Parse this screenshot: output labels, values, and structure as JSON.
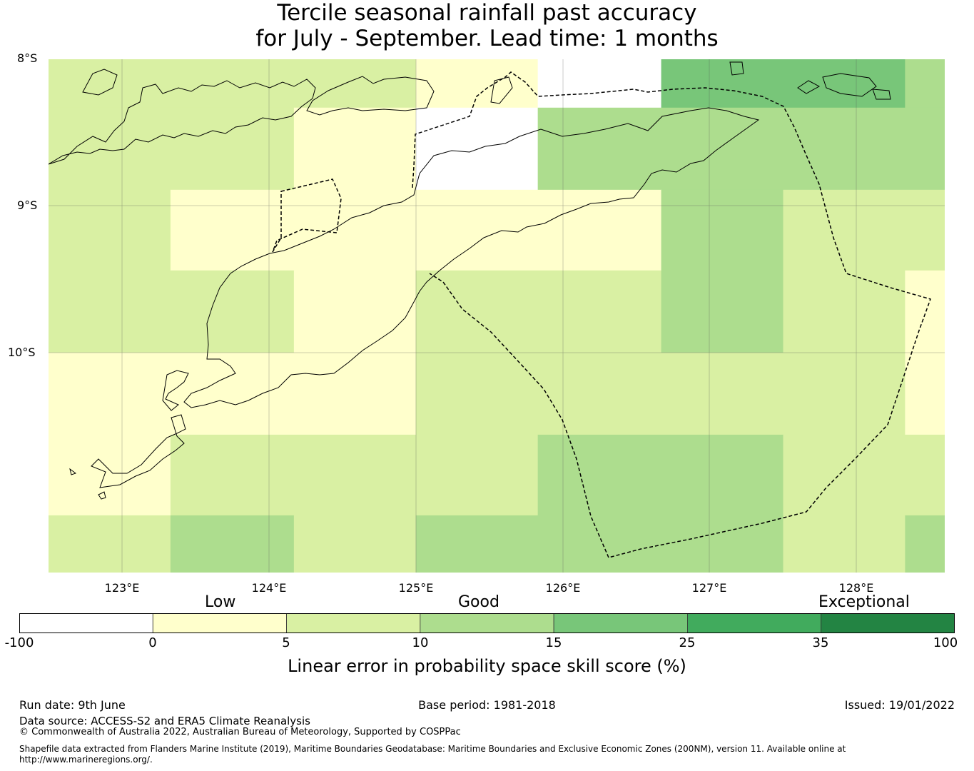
{
  "title": {
    "line1": "Tercile seasonal rainfall past accuracy",
    "line2": "for July - September. Lead time: 1 months"
  },
  "map": {
    "lon_range": [
      122.5,
      128.6
    ],
    "lat_range": [
      -11.5,
      -8.0
    ],
    "lat_labels": [
      "8°S",
      "9°S",
      "10°S"
    ],
    "lon_labels": [
      "123°E",
      "124°E",
      "125°E",
      "126°E",
      "127°E",
      "128°E"
    ],
    "colors": {
      "white": "#ffffff",
      "c0_5": "#ffffcc",
      "c5_10": "#d9f0a3",
      "c10_15": "#addd8e",
      "c15_25": "#78c679",
      "c25_35": "#41ab5d",
      "c35_100": "#238443"
    },
    "skill_grid_comment": "grid cells listed below as [lon_min, lon_max, lat_max, lat_min, class]",
    "skill_cells": [
      [
        122.5,
        125.0,
        -8.0,
        -8.33,
        "c5_10"
      ],
      [
        125.0,
        125.83,
        -8.0,
        -8.33,
        "c0_5"
      ],
      [
        125.83,
        126.67,
        -8.0,
        -8.33,
        "white"
      ],
      [
        126.67,
        128.33,
        -8.0,
        -8.33,
        "c15_25"
      ],
      [
        128.33,
        128.6,
        -8.0,
        -8.33,
        "c10_15"
      ],
      [
        122.5,
        124.17,
        -8.33,
        -8.89,
        "c5_10"
      ],
      [
        124.17,
        125.0,
        -8.33,
        -8.89,
        "c0_5"
      ],
      [
        125.0,
        125.83,
        -8.33,
        -8.89,
        "white"
      ],
      [
        125.83,
        128.6,
        -8.33,
        -8.89,
        "c10_15"
      ],
      [
        122.5,
        123.33,
        -8.89,
        -9.44,
        "c5_10"
      ],
      [
        123.33,
        126.67,
        -8.89,
        -9.44,
        "c0_5"
      ],
      [
        126.67,
        127.5,
        -8.89,
        -9.44,
        "c10_15"
      ],
      [
        127.5,
        128.6,
        -8.89,
        -9.44,
        "c5_10"
      ],
      [
        122.5,
        124.17,
        -9.44,
        -10.0,
        "c5_10"
      ],
      [
        124.17,
        125.0,
        -9.44,
        -10.0,
        "c0_5"
      ],
      [
        125.0,
        126.67,
        -9.44,
        -10.0,
        "c5_10"
      ],
      [
        126.67,
        127.5,
        -9.44,
        -10.0,
        "c10_15"
      ],
      [
        127.5,
        128.33,
        -9.44,
        -10.0,
        "c5_10"
      ],
      [
        128.33,
        128.6,
        -9.44,
        -10.0,
        "c0_5"
      ],
      [
        122.5,
        125.0,
        -10.0,
        -10.56,
        "c0_5"
      ],
      [
        125.0,
        128.33,
        -10.0,
        -10.56,
        "c5_10"
      ],
      [
        128.33,
        128.6,
        -10.0,
        -10.56,
        "c0_5"
      ],
      [
        122.5,
        123.33,
        -10.56,
        -11.11,
        "c0_5"
      ],
      [
        123.33,
        125.83,
        -10.56,
        -11.11,
        "c5_10"
      ],
      [
        125.83,
        127.5,
        -10.56,
        -11.11,
        "c10_15"
      ],
      [
        127.5,
        128.6,
        -10.56,
        -11.11,
        "c5_10"
      ],
      [
        122.5,
        123.33,
        -11.11,
        -11.5,
        "c5_10"
      ],
      [
        123.33,
        124.17,
        -11.11,
        -11.5,
        "c10_15"
      ],
      [
        124.17,
        125.0,
        -11.11,
        -11.5,
        "c5_10"
      ],
      [
        125.0,
        127.5,
        -11.11,
        -11.5,
        "c10_15"
      ],
      [
        127.5,
        128.33,
        -11.11,
        -11.5,
        "c5_10"
      ],
      [
        128.33,
        128.6,
        -11.11,
        -11.5,
        "c10_15"
      ]
    ]
  },
  "colorbar": {
    "categories": [
      "Low",
      "Good",
      "Exceptional"
    ],
    "ticks": [
      "-100",
      "0",
      "5",
      "10",
      "15",
      "25",
      "35",
      "100"
    ],
    "colors": [
      "#ffffff",
      "#ffffcc",
      "#d9f0a3",
      "#addd8e",
      "#78c679",
      "#41ab5d",
      "#238443"
    ],
    "label": "Linear error in probability space skill score (%)"
  },
  "footer": {
    "run_date": "Run date: 9th June",
    "base_period": "Base period: 1981-2018",
    "issued": "Issued: 19/01/2022",
    "data_source": "Data source: ACCESS-S2 and ERA5 Climate Reanalysis",
    "copyright": "© Commonwealth of Australia 2022, Australian Bureau of Meteorology, Supported by COSPPac",
    "shapefile_line1": "Shapefile data extracted from Flanders Marine Institute (2019), Maritime Boundaries Geodatabase: Maritime Boundaries and Exclusive Economic Zones (200NM), version 11. Available online at",
    "shapefile_line2": "http://www.marineregions.org/."
  }
}
